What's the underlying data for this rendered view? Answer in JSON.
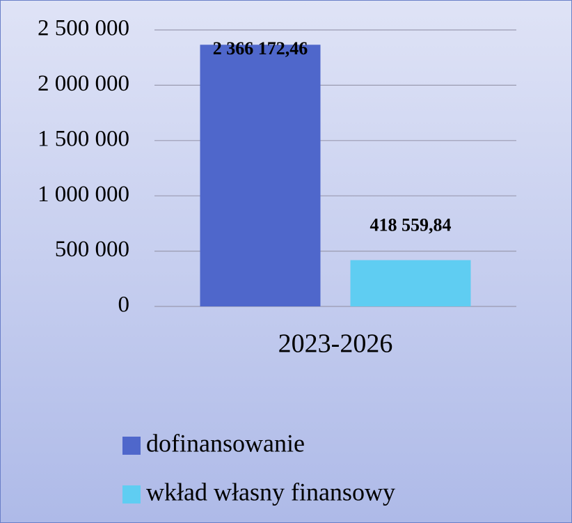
{
  "chart_data": {
    "type": "bar",
    "categories": [
      "2023-2026"
    ],
    "series": [
      {
        "name": "dofinansowanie",
        "color": "#4f67cb",
        "values": [
          2366172.46
        ],
        "value_labels": [
          "2 366 172,46"
        ]
      },
      {
        "name": "wkład własny finansowy",
        "color": "#5fcdf2",
        "values": [
          418559.84
        ],
        "value_labels": [
          "418 559,84"
        ]
      }
    ],
    "ylim": [
      0,
      2500000
    ],
    "yticks": [
      0,
      {
        "value": 500000,
        "label": "500 000"
      },
      {
        "value": 1000000,
        "label": "1 000 000"
      },
      {
        "value": 1500000,
        "label": "1 500 000"
      },
      {
        "value": 2000000,
        "label": "2 000 000"
      },
      {
        "value": 2500000,
        "label": "2 500 000"
      }
    ],
    "grid": true,
    "legend": "bottom"
  }
}
